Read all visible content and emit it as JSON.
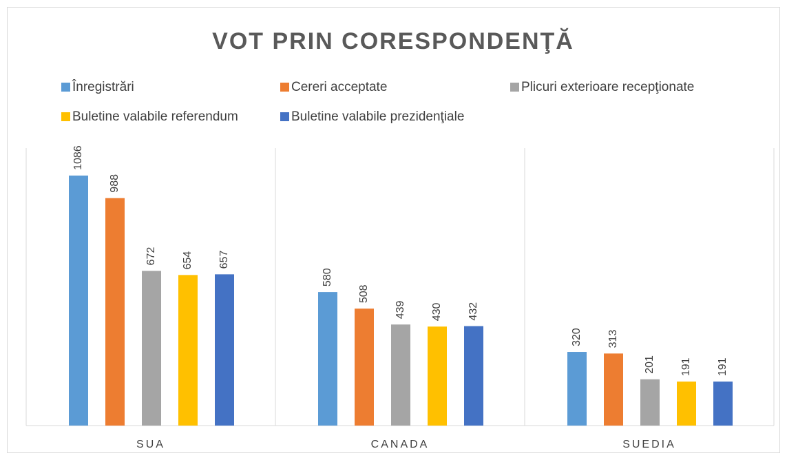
{
  "chart_data": {
    "type": "bar",
    "title": "VOT PRIN CORESPONDENŢĂ",
    "categories": [
      "SUA",
      "CANADA",
      "SUEDIA"
    ],
    "series": [
      {
        "name": "Înregistrări",
        "color": "#5b9bd5",
        "values": [
          1086,
          580,
          320
        ]
      },
      {
        "name": "Cereri acceptate",
        "color": "#ed7d31",
        "values": [
          988,
          508,
          313
        ]
      },
      {
        "name": "Plicuri exterioare recepţionate",
        "color": "#a5a5a5",
        "values": [
          672,
          439,
          201
        ]
      },
      {
        "name": "Buletine valabile referendum",
        "color": "#ffc000",
        "values": [
          654,
          430,
          191
        ]
      },
      {
        "name": "Buletine valabile prezidenţiale",
        "color": "#4472c4",
        "values": [
          657,
          432,
          191
        ]
      }
    ]
  }
}
